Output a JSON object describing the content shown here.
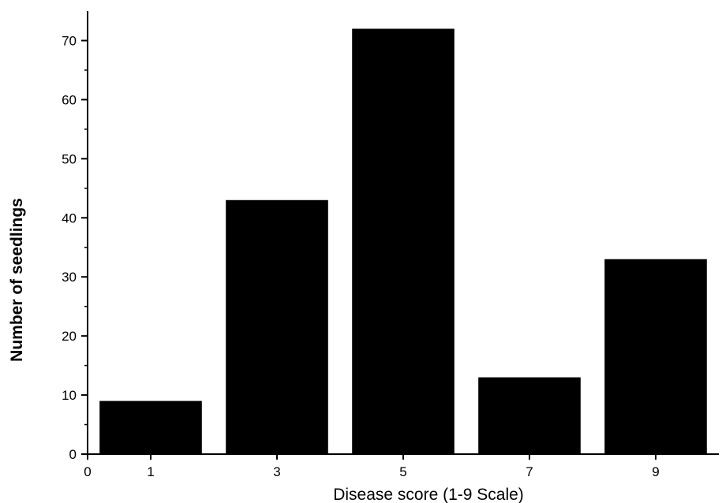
{
  "chart_data": {
    "type": "bar",
    "title": "",
    "xlabel": "Disease score (1-9 Scale)",
    "ylabel": "Number of seedlings",
    "categories": [
      "1",
      "3",
      "5",
      "7",
      "9"
    ],
    "x": [
      1,
      3,
      5,
      7,
      9
    ],
    "values": [
      9,
      43,
      72,
      13,
      33
    ],
    "xlim": [
      0,
      10
    ],
    "ylim": [
      0,
      75
    ],
    "x_ticks": [
      0,
      1,
      3,
      5,
      7,
      9
    ],
    "y_ticks": [
      0,
      10,
      20,
      30,
      40,
      50,
      60,
      70
    ],
    "bar_color": "#000000",
    "grid": false,
    "legend": "none"
  }
}
